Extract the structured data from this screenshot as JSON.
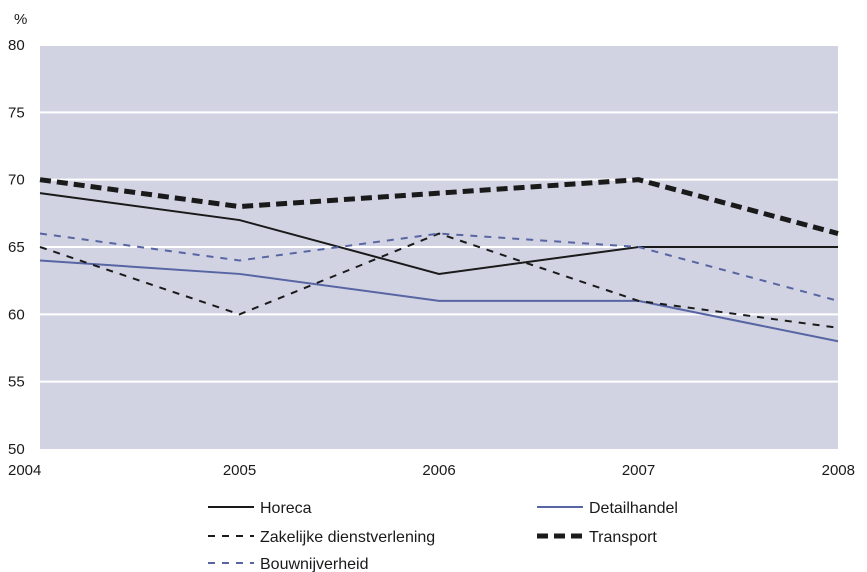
{
  "chart_data": {
    "type": "line",
    "ylabel": "%",
    "x": [
      "2004",
      "2005",
      "2006",
      "2007",
      "2008"
    ],
    "ylim": [
      50,
      80
    ],
    "yticks": [
      50,
      55,
      60,
      65,
      70,
      75,
      80
    ],
    "grid": true,
    "legend_position": "bottom",
    "colors": {
      "plot_background": "#d1d3e3",
      "gridline": "#ffffff",
      "black": "#1a1a1a",
      "blue": "#5865a3"
    },
    "series": [
      {
        "name": "Horeca",
        "values": [
          69,
          67,
          63,
          65,
          65
        ],
        "color": "#1a1a1a",
        "style": "solid"
      },
      {
        "name": "Detailhandel",
        "values": [
          64,
          63,
          61,
          61,
          58
        ],
        "color": "#5865a3",
        "style": "solid"
      },
      {
        "name": "Zakelijke dienstverlening",
        "values": [
          65,
          60,
          66,
          61,
          59
        ],
        "color": "#1a1a1a",
        "style": "dashed"
      },
      {
        "name": "Transport",
        "values": [
          70,
          68,
          69,
          70,
          66
        ],
        "color": "#1a1a1a",
        "style": "thick-dashed"
      },
      {
        "name": "Bouwnijverheid",
        "values": [
          66,
          64,
          66,
          65,
          61
        ],
        "color": "#5865a3",
        "style": "dashed"
      }
    ]
  }
}
